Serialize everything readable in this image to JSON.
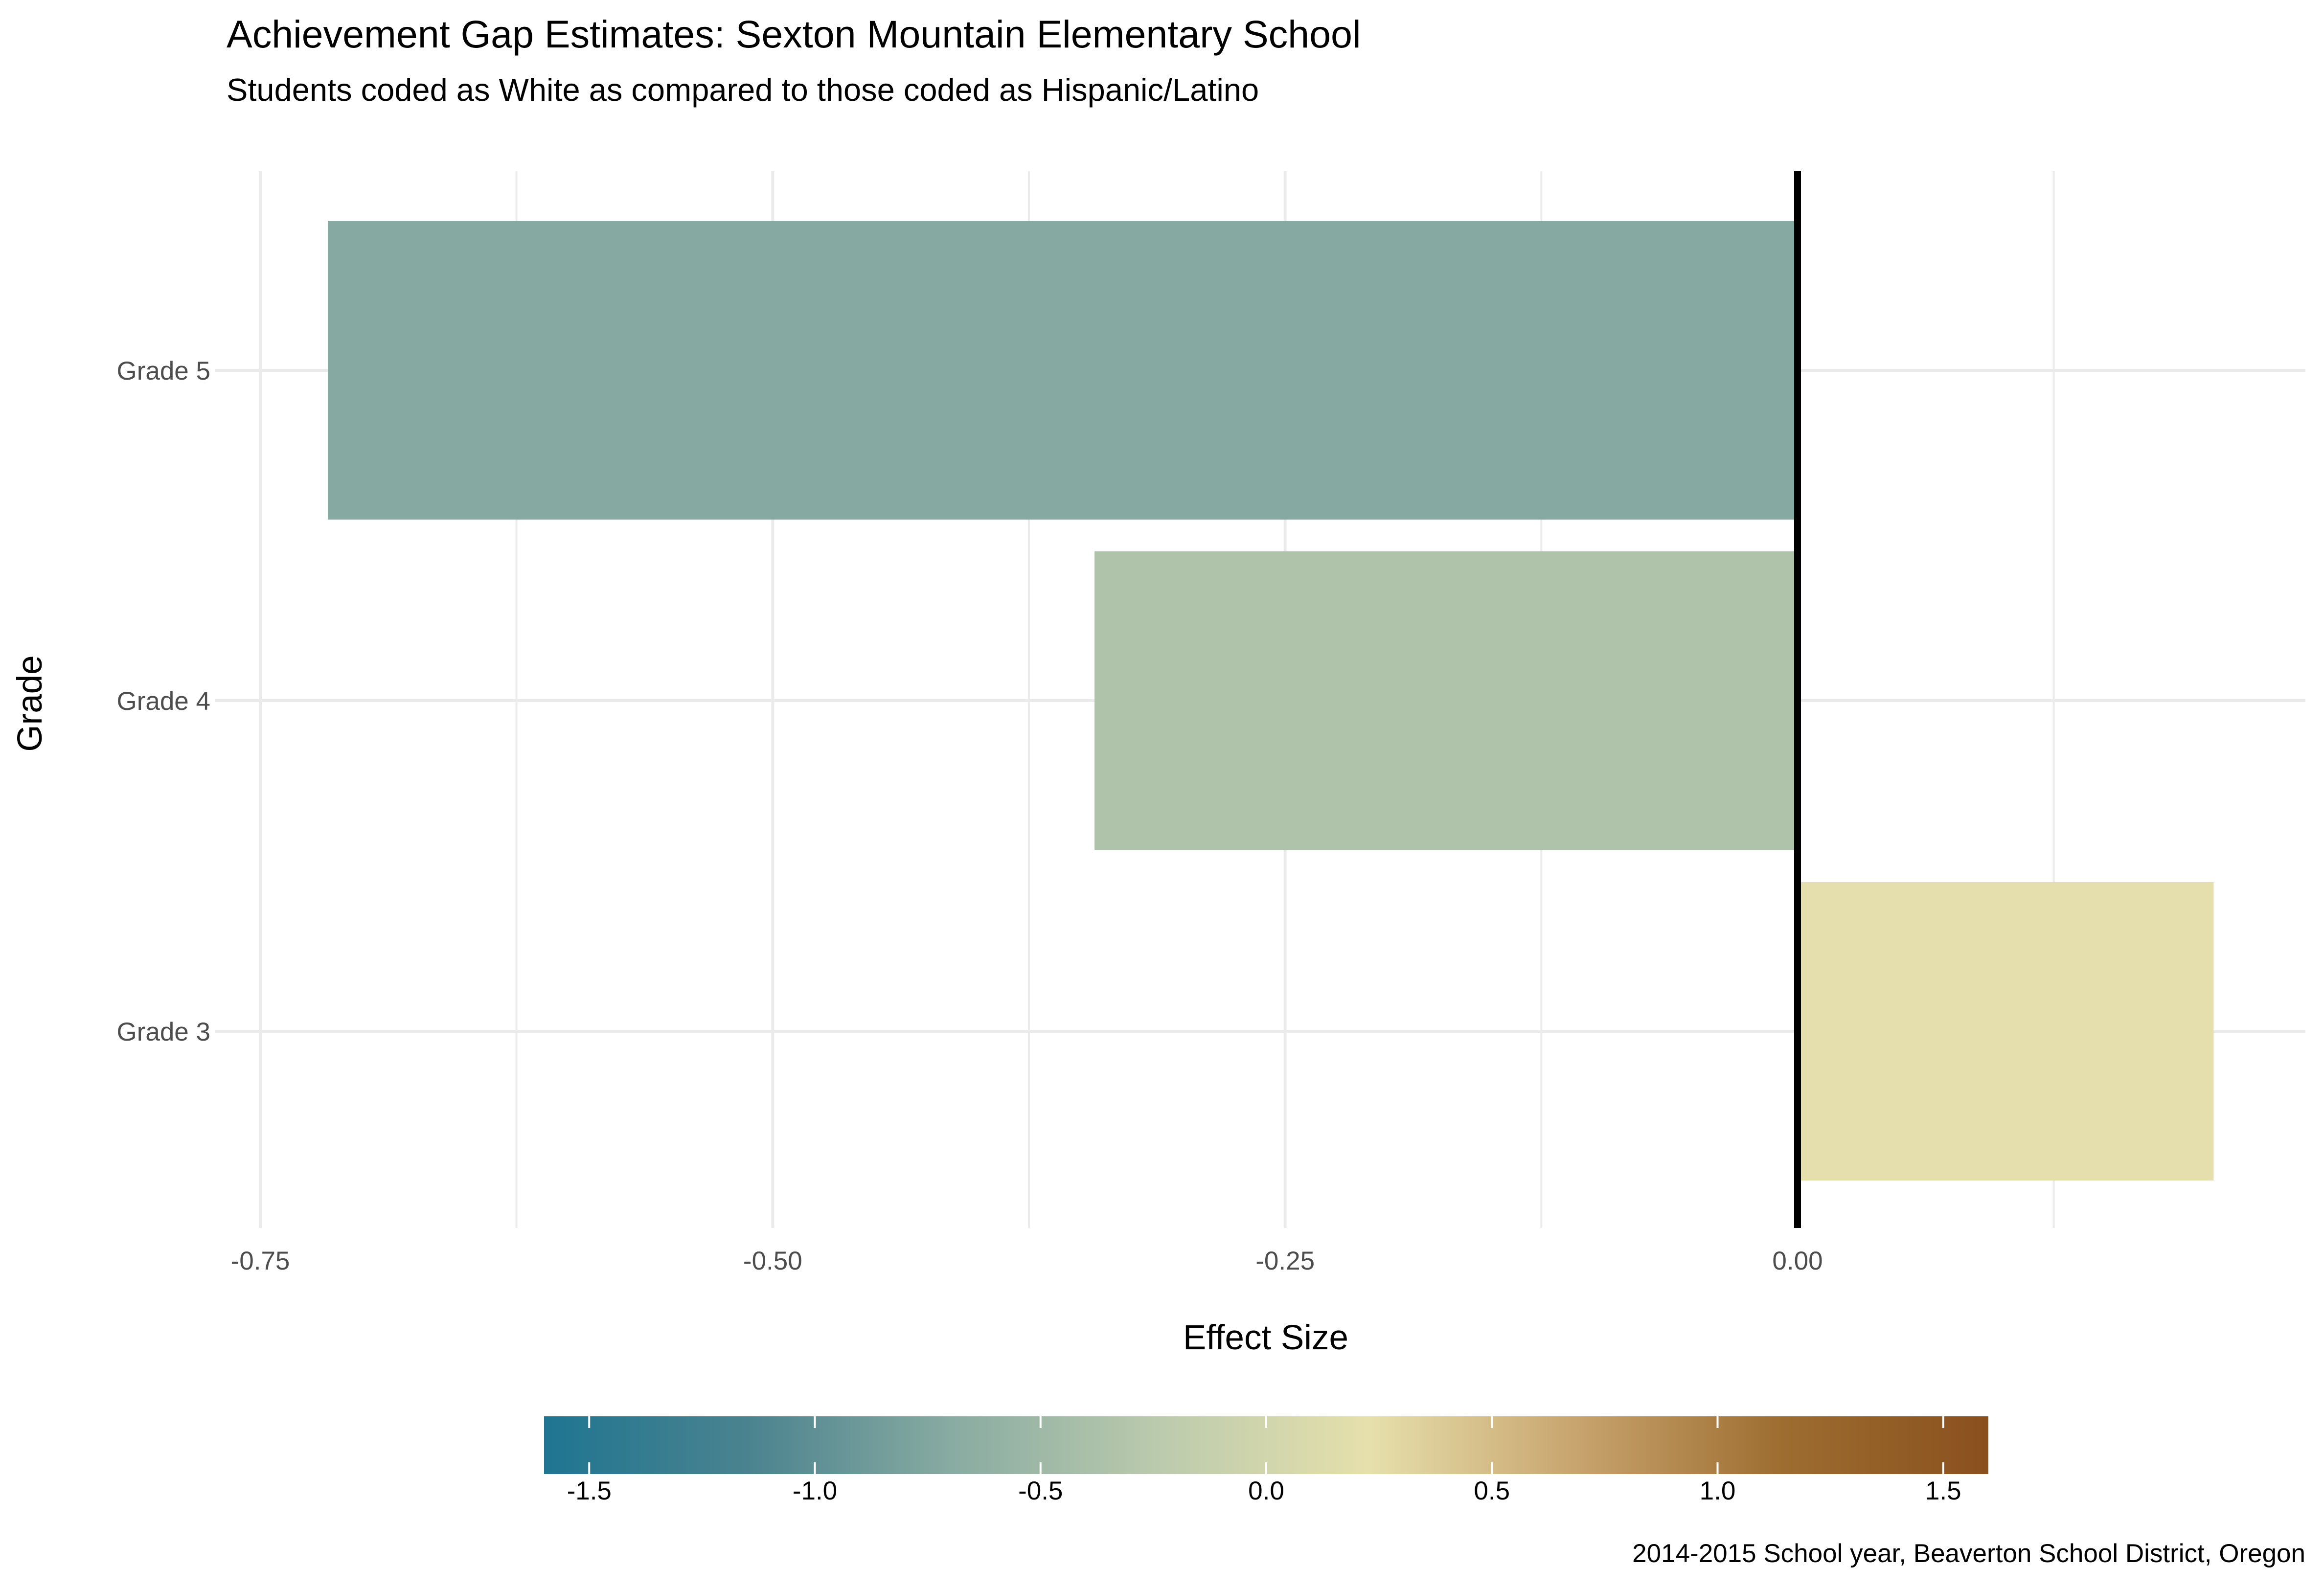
{
  "chart_data": {
    "type": "bar",
    "orientation": "horizontal",
    "title": "Achievement Gap Estimates: Sexton Mountain Elementary School",
    "subtitle": "Students coded as White as compared to those coded as Hispanic/Latino",
    "xlabel": "Effect Size",
    "ylabel": "Grade",
    "caption": "2014-2015 School year, Beaverton School District, Oregon",
    "categories": [
      "Grade 5",
      "Grade 4",
      "Grade 3"
    ],
    "values": [
      -0.717,
      -0.343,
      0.203
    ],
    "xlim": [
      -0.75,
      0.25
    ],
    "x_ticks": [
      {
        "value": -0.75,
        "label": "-0.75"
      },
      {
        "value": -0.5,
        "label": "-0.50"
      },
      {
        "value": -0.25,
        "label": "-0.25"
      },
      {
        "value": 0,
        "label": "0.00"
      }
    ],
    "x_minor_ticks": [
      -0.625,
      -0.375,
      -0.125,
      0.125
    ],
    "reference_line": 0,
    "grid": true,
    "legend": {
      "type": "colorbar",
      "position": "bottom",
      "range": [
        -1.6,
        1.6
      ],
      "ticks": [
        {
          "value": -1.5,
          "label": "-1.5"
        },
        {
          "value": -1.0,
          "label": "-1.0"
        },
        {
          "value": -0.5,
          "label": "-0.5"
        },
        {
          "value": 0.0,
          "label": "0.0"
        },
        {
          "value": 0.5,
          "label": "0.5"
        },
        {
          "value": 1.0,
          "label": "1.0"
        },
        {
          "value": 1.5,
          "label": "1.5"
        }
      ],
      "colors": [
        "#1f7591",
        "#4b838f",
        "#8aaca2",
        "#bccbad",
        "#e6e0ac",
        "#c8a46e",
        "#9d6d30",
        "#8a501e"
      ]
    },
    "colors": {
      "background": "#ffffff",
      "gridline": "#ebebeb",
      "reference_line": "#000000"
    }
  }
}
